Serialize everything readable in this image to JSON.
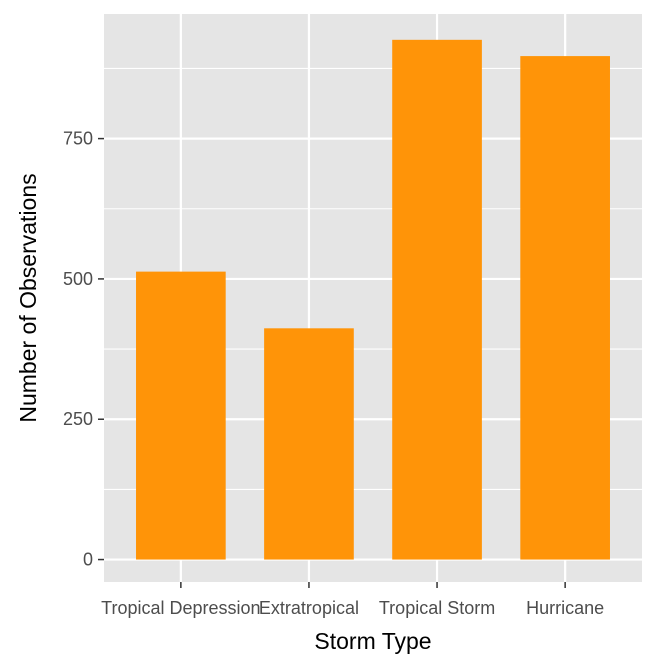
{
  "chart_data": {
    "type": "bar",
    "title": "",
    "xlabel": "Storm Type",
    "ylabel": "Number of Observations",
    "categories": [
      "Tropical Depression",
      "Extratropical",
      "Tropical Storm",
      "Hurricane"
    ],
    "values": [
      513,
      412,
      926,
      897
    ],
    "ylim": [
      -40,
      972
    ],
    "yticks": [
      0,
      250,
      500,
      750
    ],
    "ytick_labels": [
      "0",
      "250",
      "500",
      "750"
    ],
    "grid": true,
    "legend": "none",
    "bar_color": "#ff9408",
    "panel_color": "#e5e5e5",
    "grid_color": "#ffffff"
  }
}
